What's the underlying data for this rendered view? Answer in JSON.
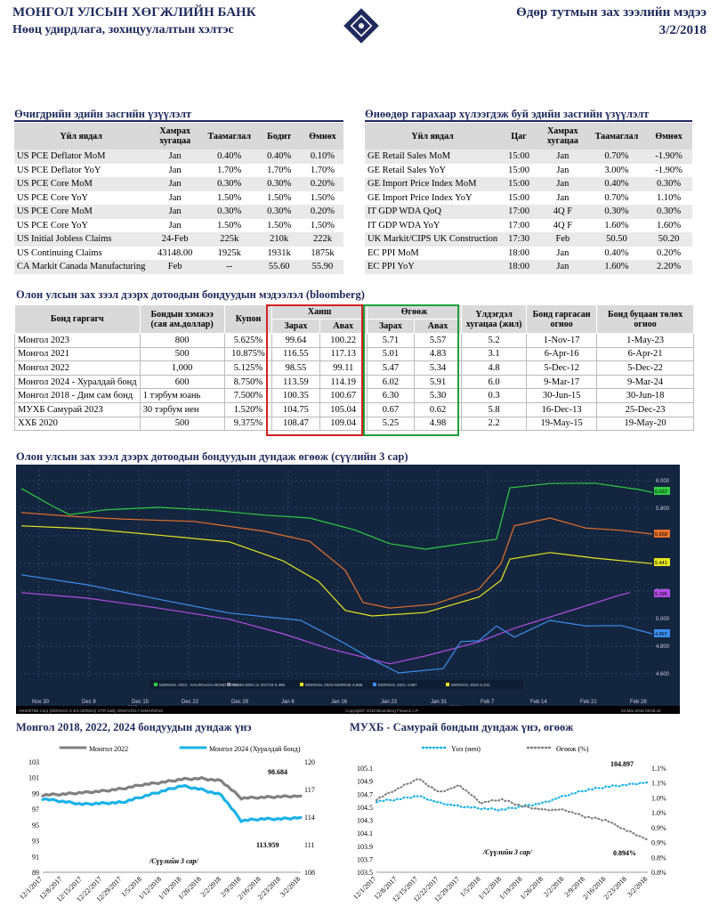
{
  "header": {
    "bank": "МОНГОЛ УЛСЫН ХӨГЖЛИЙН БАНК",
    "dept": "Нөөц удирдлага, зохицуулалтын хэлтэс",
    "report": "Өдөр тутмын зах зээлийн мэдээ",
    "date": "3/2/2018"
  },
  "prev_cal": {
    "title": "Өчигдрийн эдийн засгийн үзүүлэлт",
    "headers": [
      "Үйл явдал",
      "Хамрах хугацаа",
      "Таамаглал",
      "Бодит",
      "Өмнөх"
    ],
    "rows": [
      [
        "US PCE Deflator MoM",
        "Jan",
        "0.40%",
        "0.40%",
        "0.10%"
      ],
      [
        "US PCE Deflator YoY",
        "Jan",
        "1.70%",
        "1.70%",
        "1.70%"
      ],
      [
        "US PCE Core MoM",
        "Jan",
        "0.30%",
        "0.30%",
        "0.20%"
      ],
      [
        "US PCE Core YoY",
        "Jan",
        "1.50%",
        "1.50%",
        "1.50%"
      ],
      [
        "US PCE Core MoM",
        "Jan",
        "0.30%",
        "0.30%",
        "0.20%"
      ],
      [
        "US PCE Core YoY",
        "Jan",
        "1.50%",
        "1.50%",
        "1.50%"
      ],
      [
        "US Initial Jobless Claims",
        "24-Feb",
        "225k",
        "210k",
        "222k"
      ],
      [
        "US Continuing Claims",
        "43148.00",
        "1925k",
        "1931k",
        "1875k"
      ],
      [
        "CA Markit Canada Manufacturing",
        "Feb",
        "--",
        "55.60",
        "55.90"
      ]
    ]
  },
  "next_cal": {
    "title": "Өнөөдөр гарахаар хүлээгдэж буй эдийн засгийн үзүүлэлт",
    "headers": [
      "Үйл явдал",
      "Цаг",
      "Хамрах хугацаа",
      "Таамаглал",
      "Өмнөх"
    ],
    "rows": [
      [
        "GE Retail Sales MoM",
        "15:00",
        "Jan",
        "0.70%",
        "-1.90%"
      ],
      [
        "GE Retail Sales YoY",
        "15:00",
        "Jan",
        "3.00%",
        "-1.90%"
      ],
      [
        "GE Import Price Index MoM",
        "15:00",
        "Jan",
        "0.40%",
        "0.30%"
      ],
      [
        "GE Import Price Index YoY",
        "15:00",
        "Jan",
        "0.70%",
        "1.10%"
      ],
      [
        "IT GDP WDA QoQ",
        "17:00",
        "4Q F",
        "0.30%",
        "0.30%"
      ],
      [
        "IT GDP WDA YoY",
        "17:00",
        "4Q F",
        "1.60%",
        "1.60%"
      ],
      [
        "UK Markit/CIPS UK Construction",
        "17:30",
        "Feb",
        "50.50",
        "50.20"
      ],
      [
        "EC PPI MoM",
        "18:00",
        "Jan",
        "0.40%",
        "0.20%"
      ],
      [
        "EC PPI YoY",
        "18:00",
        "Jan",
        "1.60%",
        "2.20%"
      ]
    ]
  },
  "bonds": {
    "title": "Олон улсын зах зээл дээрх дотоодын бондуудын мэдээлэл (bloomberg)",
    "headers": {
      "issuer": "Бонд гаргагч",
      "size": "Бондын хэмжээ (сая ам.доллар)",
      "coupon": "Купон",
      "price": "Ханш",
      "yield": "Өгөөж",
      "bid": "Зарах",
      "ask": "Авах",
      "dur": "Үлдэгдэл хугацаа (жил)",
      "issue": "Бонд гаргасан огноо",
      "mat": "Бонд буцаан төлөх огноо"
    },
    "rows": [
      [
        "Монгол 2023",
        "800",
        "5.625%",
        "99.64",
        "100.22",
        "5.71",
        "5.57",
        "5.2",
        "1-Nov-17",
        "1-May-23"
      ],
      [
        "Монгол 2021",
        "500",
        "10.875%",
        "116.55",
        "117.13",
        "5.01",
        "4.83",
        "3.1",
        "6-Apr-16",
        "6-Apr-21"
      ],
      [
        "Монгол 2022",
        "1,000",
        "5.125%",
        "98.55",
        "99.11",
        "5.47",
        "5.34",
        "4.8",
        "5-Dec-12",
        "5-Dec-22"
      ],
      [
        "Монгол 2024 - Хурaлдай бонд",
        "600",
        "8.750%",
        "113.59",
        "114.19",
        "6.02",
        "5.91",
        "6.0",
        "9-Mar-17",
        "9-Mar-24"
      ],
      [
        "Монгол 2018 - Дим сам бонд",
        "1 тэрбум юань",
        "7.500%",
        "100.35",
        "100.67",
        "6.30",
        "5.30",
        "0.3",
        "30-Jun-15",
        "30-Jun-18"
      ],
      [
        "МУХБ Самурай 2023",
        "30 тэрбум иен",
        "1.520%",
        "104.75",
        "105.04",
        "0.67",
        "0.62",
        "5.8",
        "16-Dec-13",
        "25-Dec-23"
      ],
      [
        "ХХБ 2020",
        "500",
        "9.375%",
        "108.47",
        "109.04",
        "5.25",
        "4.98",
        "2.2",
        "19-May-15",
        "19-May-20"
      ]
    ]
  },
  "yield_chart": {
    "title": "Олон улсын зах зээл дээрх дотоодын бондуудын дундаж өгөөж (сүүлийн 3 сар)",
    "legend": [
      "MONGOL 2024 - KHURALDAI BOND 5.952",
      "TDBM 2020 on 2/27/18 5.398",
      "MONGOL 2023-GEREGE 5.658",
      "MONGOL 2021 4.897",
      "MONGOL 2022 5.441"
    ],
    "x_labels": [
      "Nov 30",
      "Dec 8",
      "Dec 15",
      "Dec 22",
      "Dec 29",
      "Jan 8",
      "Jan 16",
      "Jan 23",
      "Jan 31",
      "Feb 7",
      "Feb 14",
      "Feb 21",
      "Feb 28"
    ],
    "year_labels": [
      "2017",
      "2018"
    ],
    "y_labels": [
      "6.000",
      "5.800",
      "5.600",
      "5.400",
      "5.200",
      "5.000",
      "4.800",
      "4.600"
    ],
    "value_tags": [
      "6.022",
      "5.658",
      "5.441",
      "5.196",
      "4.897"
    ],
    "footer_left": "ANS5976B Corp (MONGOL 8 3/4 03/09/24) GTR  Daily 28NOV2017-02MAR2018",
    "footer_mid": "Copyright© 2018 Bloomberg Finance L.P.",
    "footer_right": "02-Mar-2018 09:06:43",
    "colors": {
      "green": "#2ecc40",
      "orange": "#e8702a",
      "yellow": "#e6e620",
      "purple": "#b44ce6",
      "blue": "#3a8ef0",
      "grey": "#8a93a6"
    }
  },
  "chart_data": [
    {
      "type": "line",
      "title": "Монгол 2018, 2022, 2024 бондуудын дундаж үнэ",
      "categories": [
        "12/1/2017",
        "12/8/2017",
        "12/15/2017",
        "12/22/2017",
        "12/29/2017",
        "1/5/2018",
        "1/12/2018",
        "1/19/2018",
        "1/26/2018",
        "2/2/2018",
        "2/9/2018",
        "2/16/2018",
        "2/23/2018",
        "3/2/2018"
      ],
      "series": [
        {
          "name": "Монгол 2022",
          "axis": "left",
          "values": [
            98.8,
            98.9,
            99.1,
            99.3,
            99.6,
            100.1,
            100.4,
            100.8,
            100.9,
            100.6,
            98.4,
            98.5,
            98.6,
            98.684
          ]
        },
        {
          "name": "Монгол 2024 (Хуралдай бонд)",
          "axis": "right",
          "values": [
            116.0,
            115.7,
            115.4,
            115.5,
            115.6,
            116.2,
            116.8,
            117.4,
            117.0,
            116.4,
            113.6,
            113.8,
            113.8,
            113.959
          ]
        }
      ],
      "ylim_left": [
        89,
        103
      ],
      "ylim_right": [
        108,
        120
      ],
      "y_ticks_left": [
        "103",
        "101",
        "99",
        "97",
        "95",
        "93",
        "91",
        "89"
      ],
      "y_ticks_right": [
        "120",
        "117",
        "114",
        "111",
        "108"
      ],
      "annotations": [
        "98.684",
        "113.959",
        "/Сүүлийн 3 сар/"
      ],
      "colors": [
        "#808080",
        "#1ab2e8"
      ]
    },
    {
      "type": "line",
      "title": "МУХБ - Самурай бондын дундаж үнэ, өгөөж",
      "categories": [
        "12/1/2017",
        "12/8/2017",
        "12/15/2017",
        "12/22/2017",
        "12/29/2017",
        "1/5/2018",
        "1/12/2018",
        "1/19/2018",
        "1/26/2018",
        "2/2/2018",
        "2/9/2018",
        "2/16/2018",
        "2/23/2018",
        "3/2/2018"
      ],
      "series": [
        {
          "name": "Үнэ (иен)",
          "axis": "left",
          "values": [
            104.62,
            104.65,
            104.7,
            104.6,
            104.55,
            104.52,
            104.5,
            104.55,
            104.6,
            104.7,
            104.78,
            104.83,
            104.86,
            104.897
          ]
        },
        {
          "name": "Өгөөж (%)",
          "axis": "right",
          "values": [
            1.01,
            1.04,
            1.07,
            1.03,
            1.05,
            1.0,
            1.01,
            0.99,
            0.98,
            0.98,
            0.96,
            0.95,
            0.92,
            0.894
          ]
        }
      ],
      "ylim_left": [
        103.6,
        105.1
      ],
      "ylim_right": [
        0.8,
        1.1
      ],
      "y_ticks_left": [
        "105.1",
        "104.9",
        "104.7",
        "104.5",
        "104.3",
        "104.1",
        "103.9",
        "103.7",
        "103.5"
      ],
      "y_ticks_right": [
        "1.1%",
        "1.1%",
        "1.0%",
        "1.0%",
        "0.9%",
        "0.9%",
        "0.8%",
        "0.8%"
      ],
      "annotations": [
        "104.897",
        "0.894%",
        "/Сүүлийн 3 сар/"
      ],
      "colors": [
        "#1ab2e8",
        "#808080"
      ]
    }
  ]
}
